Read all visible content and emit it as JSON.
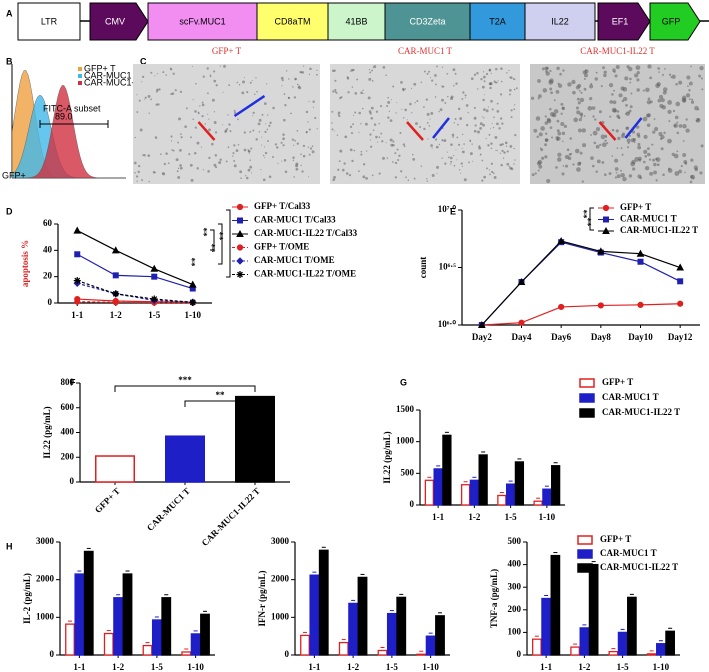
{
  "panel_labels": [
    "A",
    "B",
    "C",
    "D",
    "E",
    "F",
    "G",
    "H"
  ],
  "construct": {
    "segments": [
      {
        "label": "LTR",
        "color": "#ffffff"
      },
      {
        "label": "CMV",
        "color": "#5c0a5c"
      },
      {
        "label": "scFv.MUC1",
        "color": "#f28ef2"
      },
      {
        "label": "CD8aTM",
        "color": "#ffff6e"
      },
      {
        "label": "41BB",
        "color": "#ccf5cc"
      },
      {
        "label": "CD3Zeta",
        "color": "#4f9494"
      },
      {
        "label": "T2A",
        "color": "#3399dd"
      },
      {
        "label": "IL22",
        "color": "#cfd0f0"
      },
      {
        "label": "EF1",
        "color": "#5c0a5c"
      },
      {
        "label": "GFP",
        "color": "#22cc22"
      }
    ]
  },
  "flow": {
    "legend": [
      "GFP+ T",
      "CAR-MUC1 T",
      "CAR-MUC1-IL22 T"
    ],
    "colors": [
      "#f0a040",
      "#40b8e8",
      "#d03040"
    ],
    "gate_label": "FITC-A subset",
    "gate_value": "89.0",
    "x_label": "GFP+"
  },
  "images": {
    "titles": [
      "GFP+ T",
      "CAR-MUC1 T",
      "CAR-MUC1-IL22 T"
    ]
  },
  "chart_data": [
    {
      "type": "line",
      "y_label": "apoptosis %",
      "categories": [
        "1-1",
        "1-2",
        "1-5",
        "1-10"
      ],
      "ylim": [
        0,
        60
      ],
      "yticks": [
        0,
        20,
        40,
        60
      ],
      "legend": "right",
      "annotations": [
        "**",
        "**",
        "**",
        "**"
      ],
      "series": [
        {
          "name": "GFP+ T/Cal33",
          "color": "#e02020",
          "marker": "circle",
          "dash": false,
          "values": [
            3,
            1.5,
            1,
            0.5
          ]
        },
        {
          "name": "CAR-MUC1 T/Cal33",
          "color": "#2020b0",
          "marker": "square",
          "dash": false,
          "values": [
            37,
            21,
            20,
            11
          ]
        },
        {
          "name": "CAR-MUC1-IL22 T/Cal33",
          "color": "#000000",
          "marker": "triangle",
          "dash": false,
          "values": [
            55,
            40,
            26,
            14
          ]
        },
        {
          "name": "GFP+ T/OME",
          "color": "#e02020",
          "marker": "circle",
          "dash": true,
          "values": [
            1,
            0.5,
            0.3,
            0.2
          ]
        },
        {
          "name": "CAR-MUC1 T/OME",
          "color": "#2020b0",
          "marker": "diamond",
          "dash": true,
          "values": [
            15,
            7,
            2,
            0.5
          ]
        },
        {
          "name": "CAR-MUC1-IL22 T/OME",
          "color": "#000000",
          "marker": "star",
          "dash": true,
          "values": [
            17,
            7,
            3,
            0.5
          ]
        }
      ]
    },
    {
      "type": "line",
      "y_label": "count",
      "log_scale": true,
      "categories": [
        "Day2",
        "Day4",
        "Day6",
        "Day8",
        "Day10",
        "Day12"
      ],
      "ylim": [
        1000000,
        10000000
      ],
      "yticks": [
        {
          "value": 1000000,
          "label": "10⁶·⁰"
        },
        {
          "value": 3162278,
          "label": "10⁶·⁵"
        },
        {
          "value": 10000000,
          "label": "10⁷·⁰"
        }
      ],
      "legend": "upper right",
      "annotations": [
        "**",
        "**"
      ],
      "series": [
        {
          "name": "GFP+ T",
          "color": "#e02020",
          "marker": "circle",
          "dash": false,
          "values": [
            1000000,
            1047000,
            1435000,
            1479000,
            1496000,
            1531000
          ]
        },
        {
          "name": "CAR-MUC1 T",
          "color": "#2020b0",
          "marker": "square",
          "dash": false,
          "values": [
            1000000,
            2366000,
            5250000,
            4266000,
            3548000,
            2399000
          ]
        },
        {
          "name": "CAR-MUC1-IL22 T",
          "color": "#000000",
          "marker": "triangle",
          "dash": false,
          "values": [
            1000000,
            2366000,
            5370000,
            4365000,
            4169000,
            3162000
          ]
        }
      ]
    },
    {
      "type": "bar",
      "y_label": "IL22 (pg/mL)",
      "categories": [
        "GFP+ T",
        "CAR-MUC1 T",
        "CAR-MUC1-IL22 T"
      ],
      "values": [
        210,
        370,
        690
      ],
      "colors": [
        "#ffffff",
        "#1f1fc8",
        "#000000"
      ],
      "edge_colors": [
        "#e02020",
        "#1f1fc8",
        "#000000"
      ],
      "ylim": [
        0,
        800
      ],
      "yticks": [
        0,
        200,
        400,
        600,
        800
      ],
      "annotations": [
        "***",
        "**"
      ]
    },
    {
      "type": "grouped-bar",
      "y_label": "IL22 (pg/mL)",
      "categories": [
        "1-1",
        "1-2",
        "1-5",
        "1-10"
      ],
      "ylim": [
        0,
        1500
      ],
      "yticks": [
        0,
        500,
        1000,
        1500
      ],
      "legend": "right",
      "series": [
        {
          "name": "GFP+ T",
          "color": "#ffffff",
          "edge_color": "#e02020",
          "values": [
            390,
            320,
            150,
            60
          ]
        },
        {
          "name": "CAR-MUC1 T",
          "color": "#1f1fc8",
          "edge_color": "#1f1fc8",
          "values": [
            570,
            390,
            330,
            250
          ]
        },
        {
          "name": "CAR-MUC1-IL22 T",
          "color": "#000000",
          "edge_color": "#000000",
          "values": [
            1100,
            790,
            680,
            620
          ]
        }
      ]
    },
    {
      "type": "grouped-bar",
      "y_label": "IL-2 (pg/mL)",
      "categories": [
        "1-1",
        "1-2",
        "1-5",
        "1-10"
      ],
      "ylim": [
        0,
        3000
      ],
      "yticks": [
        0,
        1000,
        2000,
        3000
      ],
      "series": [
        {
          "color": "#ffffff",
          "edge_color": "#e02020",
          "values": [
            820,
            570,
            250,
            80
          ]
        },
        {
          "color": "#1f1fc8",
          "edge_color": "#1f1fc8",
          "values": [
            2150,
            1520,
            930,
            560
          ]
        },
        {
          "color": "#000000",
          "edge_color": "#000000",
          "values": [
            2750,
            2150,
            1520,
            1080
          ]
        }
      ]
    },
    {
      "type": "grouped-bar",
      "y_label": "IFN-r (pg/mL)",
      "categories": [
        "1-1",
        "1-2",
        "1-5",
        "1-10"
      ],
      "ylim": [
        0,
        3000
      ],
      "yticks": [
        0,
        1000,
        2000,
        3000
      ],
      "series": [
        {
          "color": "#ffffff",
          "edge_color": "#e02020",
          "values": [
            520,
            330,
            120,
            20
          ]
        },
        {
          "color": "#1f1fc8",
          "edge_color": "#1f1fc8",
          "values": [
            2120,
            1370,
            1100,
            500
          ]
        },
        {
          "color": "#000000",
          "edge_color": "#000000",
          "values": [
            2780,
            2060,
            1530,
            1040
          ]
        }
      ]
    },
    {
      "type": "grouped-bar",
      "y_label": "TNF-a (pg/mL)",
      "categories": [
        "1-1",
        "1-2",
        "1-5",
        "1-10"
      ],
      "ylim": [
        0,
        500
      ],
      "yticks": [
        0,
        100,
        200,
        300,
        400,
        500
      ],
      "legend": "upper right",
      "series": [
        {
          "name": "GFP+ T",
          "color": "#ffffff",
          "edge_color": "#e02020",
          "values": [
            70,
            35,
            15,
            5
          ]
        },
        {
          "name": "CAR-MUC1 T",
          "color": "#1f1fc8",
          "edge_color": "#1f1fc8",
          "values": [
            250,
            120,
            100,
            50
          ]
        },
        {
          "name": "CAR-MUC1-IL22 T",
          "color": "#000000",
          "edge_color": "#000000",
          "values": [
            440,
            400,
            255,
            105
          ]
        }
      ]
    }
  ]
}
